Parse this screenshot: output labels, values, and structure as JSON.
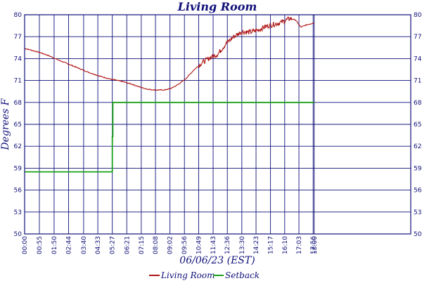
{
  "chart_data": {
    "type": "line",
    "title": "Living Room",
    "xlabel": "06/06/23 (EST)",
    "ylabel": "Degrees F",
    "ylim": [
      50,
      80
    ],
    "y_ticks": [
      50,
      53,
      56,
      59,
      62,
      65,
      68,
      71,
      74,
      77,
      80
    ],
    "x_range_minutes": [
      0,
      1440
    ],
    "x_ticks": [
      "00:00",
      "00:55",
      "01:50",
      "02:44",
      "03:40",
      "04:33",
      "05:27",
      "06:21",
      "07:15",
      "08:08",
      "09:02",
      "09:56",
      "10:49",
      "11:43",
      "12:36",
      "13:30",
      "14:23",
      "15:17",
      "16:10",
      "17:03",
      "17:56",
      "18:00"
    ],
    "x_tick_minutes": [
      0,
      55,
      110,
      164,
      220,
      273,
      327,
      381,
      435,
      488,
      542,
      596,
      649,
      703,
      756,
      810,
      863,
      917,
      970,
      1023,
      1076,
      1080
    ],
    "grid": true,
    "legend_position": "bottom",
    "colors": {
      "axis": "#10107a",
      "living_room": "#b01515",
      "setback": "#1aa21a"
    },
    "series": [
      {
        "name": "Living Room",
        "color": "#b01515",
        "x": [
          0,
          30,
          60,
          90,
          120,
          160,
          200,
          240,
          280,
          320,
          360,
          400,
          430,
          460,
          490,
          520,
          545,
          570,
          600,
          630,
          660,
          690,
          720,
          750,
          780,
          810,
          840,
          870,
          900,
          930,
          960,
          990,
          1010,
          1030,
          1050,
          1070,
          1080
        ],
        "y": [
          75.4,
          75.1,
          74.8,
          74.4,
          73.9,
          73.3,
          72.7,
          72.1,
          71.6,
          71.2,
          70.9,
          70.5,
          70.1,
          69.8,
          69.7,
          69.7,
          69.9,
          70.4,
          71.2,
          72.4,
          73.4,
          74.1,
          74.6,
          76.0,
          77.0,
          77.7,
          77.6,
          77.9,
          78.4,
          78.7,
          79.0,
          79.5,
          79.3,
          78.3,
          78.6,
          78.8,
          78.9
        ]
      },
      {
        "name": "Setback",
        "color": "#1aa21a",
        "x": [
          0,
          327,
          327,
          329,
          329,
          1080
        ],
        "y": [
          58.5,
          58.5,
          63.3,
          63.3,
          68.0,
          68.0
        ]
      }
    ]
  }
}
